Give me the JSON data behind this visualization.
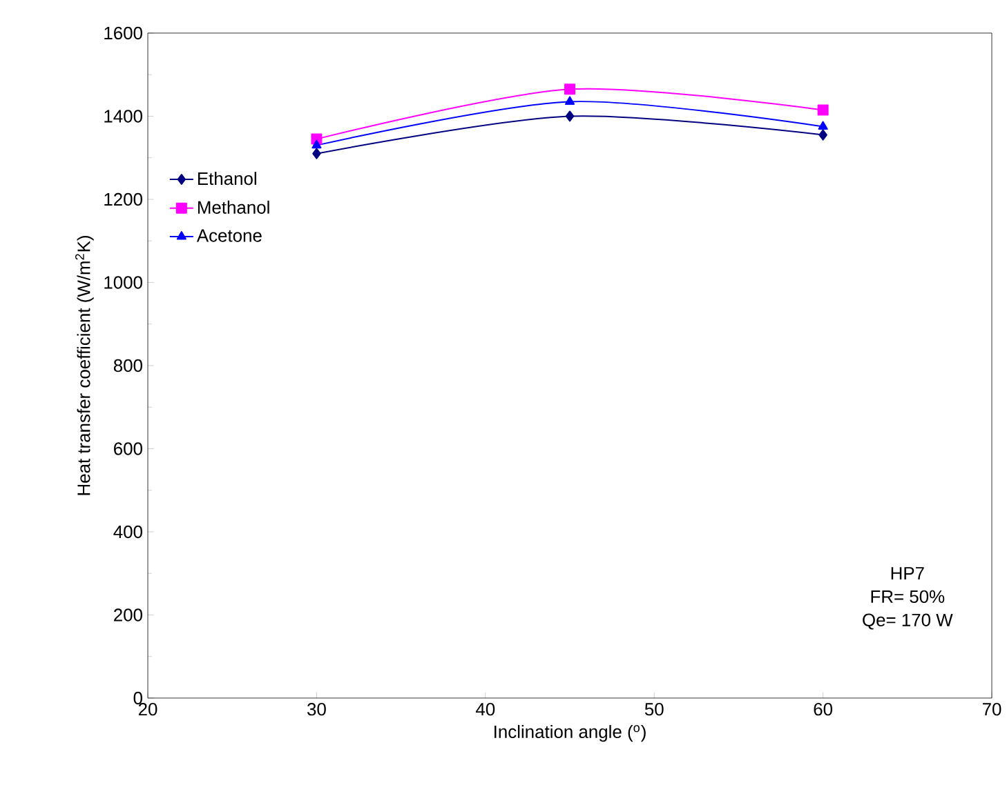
{
  "chart_data": {
    "type": "line",
    "xlabel": "Inclination angle ($^{o}$)",
    "ylabel": "Heat transfer coefficient (W/m$^{2}$K)",
    "x": [
      30,
      45,
      60
    ],
    "series": [
      {
        "name": "Ethanol",
        "color": "#000080",
        "marker": "diamond",
        "values": [
          1310,
          1400,
          1355
        ]
      },
      {
        "name": "Methanol",
        "color": "#ff00ff",
        "marker": "square",
        "values": [
          1345,
          1465,
          1415
        ]
      },
      {
        "name": "Acetone",
        "color": "#0000ff",
        "marker": "triangle",
        "values": [
          1330,
          1435,
          1375
        ]
      }
    ],
    "xlim": [
      20,
      70
    ],
    "xticks": [
      20,
      30,
      40,
      50,
      60,
      70
    ],
    "ylim": [
      0,
      1600
    ],
    "yticks": [
      0,
      200,
      400,
      600,
      800,
      1000,
      1200,
      1400,
      1600
    ],
    "legend": "left",
    "grid": false,
    "annotations": [
      "HP7",
      "FR= 50%",
      "Qe= 170 W"
    ]
  }
}
